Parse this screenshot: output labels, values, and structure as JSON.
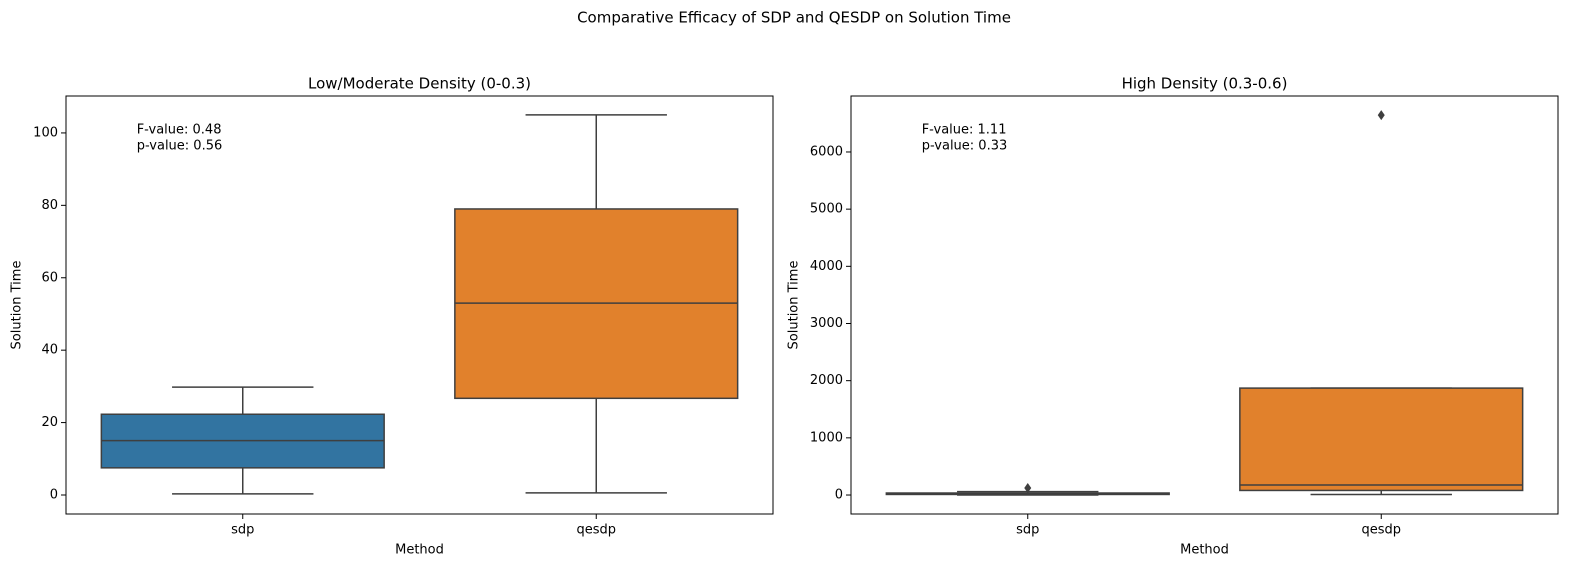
{
  "title": "Comparative Efficacy of SDP and QESDP on Solution Time",
  "chart_data": [
    {
      "type": "box",
      "title": "Low/Moderate Density (0-0.3)",
      "x_label": "Method",
      "y_label": "Solution Time",
      "categories": [
        "sdp",
        "qesdp"
      ],
      "colors": [
        "#3274a1",
        "#e1812c"
      ],
      "boxes": [
        {
          "whislo": 0.3,
          "q1": 7.5,
          "med": 15,
          "q3": 22.3,
          "whishi": 29.8
        },
        {
          "whislo": 0.6,
          "q1": 26.7,
          "med": 53,
          "q3": 79,
          "whishi": 105
        }
      ],
      "ylim": [
        -5.25,
        110.2
      ],
      "yticks": [
        0,
        20,
        40,
        60,
        80,
        100
      ],
      "annotations": [
        "F-value: 0.48",
        "p-value: 0.56"
      ]
    },
    {
      "type": "box",
      "title": "High Density (0.3-0.6)",
      "x_label": "Method",
      "y_label": "Solution Time",
      "categories": [
        "sdp",
        "qesdp"
      ],
      "colors": [
        "#3274a1",
        "#e1812c"
      ],
      "boxes": [
        {
          "whislo": 0,
          "q1": 10,
          "med": 20,
          "q3": 35,
          "whishi": 60,
          "fliers": [
            122
          ]
        },
        {
          "whislo": 10,
          "q1": 80,
          "med": 175,
          "q3": 1870,
          "whishi": 1870,
          "fliers": [
            6645
          ]
        }
      ],
      "ylim": [
        -332,
        6979
      ],
      "yticks": [
        0,
        1000,
        2000,
        3000,
        4000,
        5000,
        6000
      ],
      "annotations": [
        "F-value: 1.11",
        "p-value: 0.33"
      ]
    }
  ]
}
